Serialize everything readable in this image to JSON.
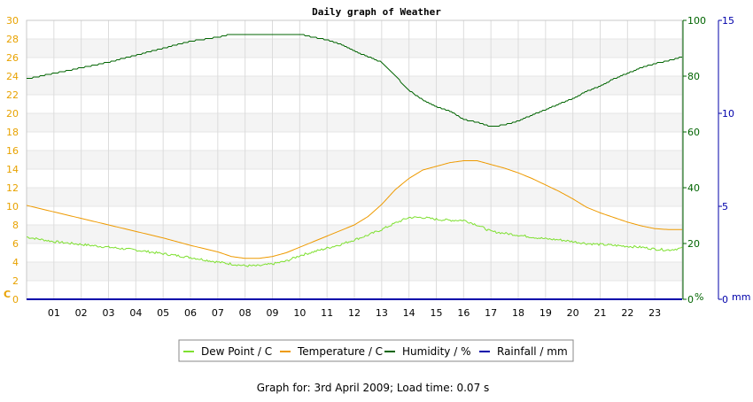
{
  "chart_data": {
    "type": "line",
    "title": "Daily graph of Weather",
    "x_tick_labels": [
      "01",
      "02",
      "03",
      "04",
      "05",
      "06",
      "07",
      "08",
      "09",
      "10",
      "11",
      "12",
      "13",
      "14",
      "15",
      "16",
      "17",
      "18",
      "19",
      "20",
      "21",
      "22",
      "23"
    ],
    "xlim": [
      0,
      24
    ],
    "axes": {
      "left": {
        "unit_label": "C",
        "ylim": [
          0,
          30
        ],
        "ticks": [
          0,
          2,
          4,
          6,
          8,
          10,
          12,
          14,
          16,
          18,
          20,
          22,
          24,
          26,
          28,
          30
        ],
        "color": "#e8a200"
      },
      "right1": {
        "unit_label": "%",
        "ylim": [
          0,
          100
        ],
        "ticks": [
          0,
          20,
          40,
          60,
          80,
          100
        ],
        "color": "#006400"
      },
      "right2": {
        "unit_label": "mm",
        "ylim": [
          0,
          15
        ],
        "ticks": [
          0,
          5,
          10,
          15
        ],
        "color": "#0000aa"
      }
    },
    "grid": true,
    "legend_position": "bottom",
    "series": [
      {
        "name": "Dew Point / C",
        "axis": "left",
        "color": "#7ee030",
        "x": [
          0,
          1,
          2,
          3,
          4,
          5,
          6,
          7,
          7.5,
          8,
          8.5,
          9,
          9.5,
          10,
          10.5,
          11,
          11.5,
          12,
          12.5,
          13,
          13.5,
          14,
          14.5,
          15,
          15.5,
          16,
          16.5,
          17,
          17.5,
          18,
          18.5,
          19,
          19.5,
          20,
          20.5,
          21,
          21.5,
          22,
          22.5,
          23,
          23.5,
          24
        ],
        "y": [
          6.7,
          6.2,
          5.9,
          5.6,
          5.3,
          4.9,
          4.5,
          4.0,
          3.8,
          3.6,
          3.6,
          3.8,
          4.1,
          4.7,
          5.1,
          5.5,
          5.9,
          6.4,
          6.9,
          7.5,
          8.2,
          8.8,
          8.8,
          8.6,
          8.5,
          8.5,
          8.0,
          7.3,
          7.1,
          6.9,
          6.7,
          6.5,
          6.4,
          6.2,
          6.0,
          5.9,
          5.8,
          5.7,
          5.6,
          5.4,
          5.3,
          5.5
        ]
      },
      {
        "name": "Temperature / C",
        "axis": "left",
        "color": "#ee9a00",
        "x": [
          0,
          1,
          2,
          3,
          4,
          5,
          6,
          7,
          7.5,
          8,
          8.5,
          9,
          9.5,
          10,
          10.5,
          11,
          11.5,
          12,
          12.5,
          13,
          13.5,
          14,
          14.5,
          15,
          15.5,
          16,
          16.5,
          17,
          17.5,
          18,
          18.5,
          19,
          19.5,
          20,
          20.5,
          21,
          21.5,
          22,
          22.5,
          23,
          23.5,
          24
        ],
        "y": [
          10.1,
          9.4,
          8.7,
          8.0,
          7.3,
          6.6,
          5.8,
          5.1,
          4.6,
          4.4,
          4.4,
          4.6,
          5.0,
          5.6,
          6.2,
          6.8,
          7.4,
          8.0,
          8.9,
          10.2,
          11.8,
          13.0,
          13.9,
          14.3,
          14.7,
          14.9,
          14.9,
          14.5,
          14.1,
          13.6,
          13.0,
          12.3,
          11.6,
          10.8,
          9.9,
          9.3,
          8.8,
          8.3,
          7.9,
          7.6,
          7.5,
          7.5
        ]
      },
      {
        "name": "Humidity / %",
        "axis": "right1",
        "color": "#006400",
        "x": [
          0,
          1,
          2,
          3,
          4,
          5,
          6,
          7,
          7.5,
          8,
          8.5,
          9,
          9.5,
          10,
          10.5,
          11,
          11.5,
          12,
          12.5,
          13,
          13.5,
          14,
          14.5,
          15,
          15.5,
          16,
          16.5,
          17,
          17.5,
          18,
          18.5,
          19,
          19.5,
          20,
          20.5,
          21,
          21.5,
          22,
          22.5,
          23,
          23.5,
          24
        ],
        "y": [
          79.0,
          81.0,
          83.0,
          85.0,
          87.5,
          90.0,
          92.5,
          94.0,
          95.0,
          95.0,
          95.0,
          95.0,
          95.0,
          95.0,
          94.0,
          93.0,
          91.5,
          89.0,
          87.0,
          85.0,
          80.0,
          75.0,
          71.5,
          69.0,
          67.5,
          64.5,
          63.5,
          62.0,
          62.5,
          64.0,
          66.0,
          68.0,
          70.0,
          72.0,
          74.5,
          76.5,
          79.0,
          81.0,
          83.0,
          84.5,
          85.5,
          87.0
        ]
      },
      {
        "name": "Rainfall / mm",
        "axis": "right2",
        "color": "#0000aa",
        "x": [
          0,
          24
        ],
        "y": [
          0,
          0
        ]
      }
    ]
  },
  "footer_text": "Graph for: 3rd April 2009; Load time: 0.07 s"
}
